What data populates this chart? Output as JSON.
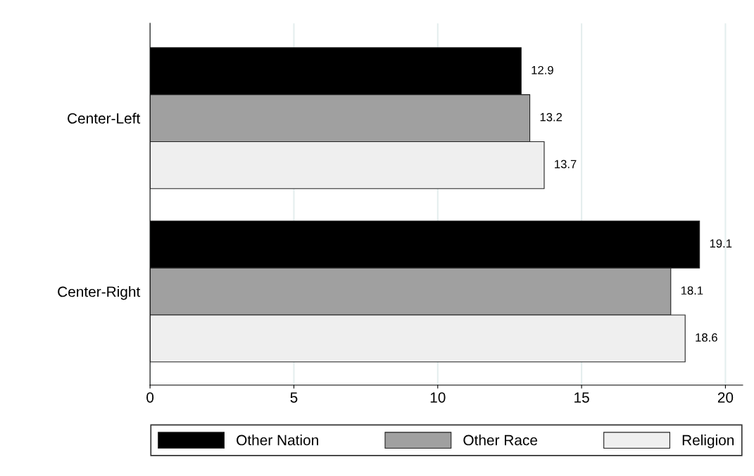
{
  "chart_data": {
    "type": "bar",
    "orientation": "horizontal",
    "categories": [
      "Center-Left",
      "Center-Right"
    ],
    "series": [
      {
        "name": "Other Nation",
        "color": "#000000",
        "values": [
          12.9,
          19.1
        ]
      },
      {
        "name": "Other Race",
        "color": "#a0a0a0",
        "values": [
          13.2,
          18.1
        ]
      },
      {
        "name": "Religion",
        "color": "#efefef",
        "values": [
          13.7,
          18.6
        ]
      }
    ],
    "xlim": [
      0,
      20.6
    ],
    "xticks": [
      0,
      5,
      10,
      15,
      20
    ],
    "grid": "x",
    "legend": "bottom",
    "data_labels": true
  }
}
